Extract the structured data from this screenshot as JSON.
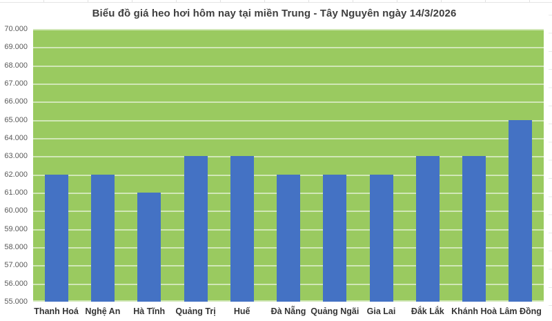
{
  "chart_data": {
    "type": "bar",
    "title": "Biểu đồ giá heo hơi hôm nay tại miền Trung - Tây Nguyên ngày 14/3/2026",
    "categories": [
      "Thanh Hoá",
      "Nghệ An",
      "Hà Tĩnh",
      "Quảng Trị",
      "Huế",
      "Đà Nẵng",
      "Quảng Ngãi",
      "Gia Lai",
      "Đắk Lắk",
      "Khánh Hoà",
      "Lâm Đồng"
    ],
    "values": [
      62000,
      62000,
      61000,
      63000,
      63000,
      62000,
      62000,
      62000,
      63000,
      63000,
      65000
    ],
    "xlabel": "",
    "ylabel": "",
    "ylim": [
      55000,
      70000
    ],
    "ytick_step": 1000,
    "y_tick_labels": [
      "70.000",
      "69.000",
      "68.000",
      "67.000",
      "66.000",
      "65.000",
      "64.000",
      "63.000",
      "62.000",
      "61.000",
      "60.000",
      "59.000",
      "58.000",
      "57.000",
      "56.000",
      "55.000"
    ],
    "grid": true,
    "legend": false,
    "legend_position": "none",
    "colors": {
      "bar": "#4472C4",
      "plot_background": "#9ACA60",
      "gridline": "rgba(255,255,255,0.55)",
      "title_text": "#3F3F3F",
      "y_tick_text": "#595959",
      "x_tick_text": "#333333",
      "sheet_grid": "#E2E2E2"
    }
  }
}
